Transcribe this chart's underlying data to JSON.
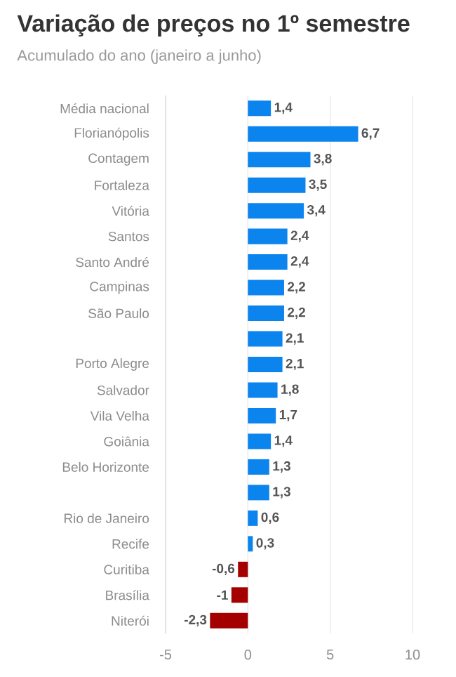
{
  "chart_data": {
    "type": "bar",
    "orientation": "horizontal",
    "title": "Variação de preços no 1º semestre",
    "subtitle": "Acumulado do ano (janeiro a junho)",
    "categories": [
      "Média nacional",
      "Florianópolis",
      "Contagem",
      "Fortaleza",
      "Vitória",
      "Santos",
      "Santo André",
      "Campinas",
      "São Paulo",
      null,
      "Porto Alegre",
      "Salvador",
      "Vila Velha",
      "Goiânia",
      "Belo Horizonte",
      null,
      "Rio de Janeiro",
      "Recife",
      "Curitiba",
      "Brasília",
      "Niterói"
    ],
    "values": [
      1.4,
      6.7,
      3.8,
      3.5,
      3.4,
      2.4,
      2.4,
      2.2,
      2.2,
      2.1,
      2.1,
      1.8,
      1.7,
      1.4,
      1.3,
      1.3,
      0.6,
      0.3,
      -0.6,
      -1,
      -2.3
    ],
    "value_labels": [
      "1,4",
      "6,7",
      "3,8",
      "3,5",
      "3,4",
      "2,4",
      "2,4",
      "2,2",
      "2,2",
      "2,1",
      "2,1",
      "1,8",
      "1,7",
      "1,4",
      "1,3",
      "1,3",
      "0,6",
      "0,3",
      "-0,6",
      "-1",
      "-2,3"
    ],
    "colors": [
      "#0b84ee",
      "#0b84ee",
      "#0b84ee",
      "#0b84ee",
      "#0b84ee",
      "#0b84ee",
      "#0b84ee",
      "#0b84ee",
      "#0b84ee",
      "#0b84ee",
      "#0b84ee",
      "#0b84ee",
      "#0b84ee",
      "#0b84ee",
      "#0b84ee",
      "#0b84ee",
      "#0b84ee",
      "#0b84ee",
      "#a50000",
      "#a50000",
      "#a50000"
    ],
    "xlim": [
      -5,
      10
    ],
    "xticks": [
      -5,
      0,
      5,
      10
    ],
    "grid": "x"
  }
}
